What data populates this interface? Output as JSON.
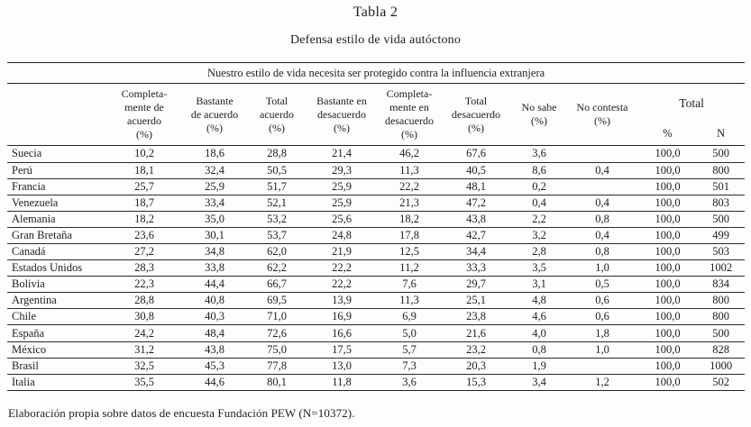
{
  "title": "Tabla 2",
  "subtitle": "Defensa estilo de vida autóctono",
  "table": {
    "question": "Nuestro estilo de vida necesita ser protegido contra la influencia extranjera",
    "col_headers": [
      "Completa-\nmente de\nacuerdo\n(%)",
      "Bastante\nde acuerdo\n(%)",
      "Total\nacuerdo\n(%)",
      "Bastante en\ndesacuerdo\n(%)",
      "Completa-\nmente en\ndesacuerdo\n(%)",
      "Total\ndesacuerdo\n(%)",
      "No sabe\n(%)",
      "No contesta\n(%)"
    ],
    "total_label": "Total",
    "total_sub": [
      "%",
      "N"
    ],
    "rows": [
      {
        "country": "Suecia",
        "values": [
          "10,2",
          "18,6",
          "28,8",
          "21,4",
          "46,2",
          "67,6",
          "3,6",
          "",
          "100,0",
          "500"
        ]
      },
      {
        "country": "Perú",
        "values": [
          "18,1",
          "32,4",
          "50,5",
          "29,3",
          "11,3",
          "40,5",
          "8,6",
          "0,4",
          "100,0",
          "800"
        ]
      },
      {
        "country": "Francia",
        "values": [
          "25,7",
          "25,9",
          "51,7",
          "25,9",
          "22,2",
          "48,1",
          "0,2",
          "",
          "100,0",
          "501"
        ]
      },
      {
        "country": "Venezuela",
        "values": [
          "18,7",
          "33,4",
          "52,1",
          "25,9",
          "21,3",
          "47,2",
          "0,4",
          "0,4",
          "100,0",
          "803"
        ]
      },
      {
        "country": "Alemania",
        "values": [
          "18,2",
          "35,0",
          "53,2",
          "25,6",
          "18,2",
          "43,8",
          "2,2",
          "0,8",
          "100,0",
          "500"
        ]
      },
      {
        "country": "Gran Bretaña",
        "values": [
          "23,6",
          "30,1",
          "53,7",
          "24,8",
          "17,8",
          "42,7",
          "3,2",
          "0,4",
          "100,0",
          "499"
        ]
      },
      {
        "country": "Canadá",
        "values": [
          "27,2",
          "34,8",
          "62,0",
          "21,9",
          "12,5",
          "34,4",
          "2,8",
          "0,8",
          "100,0",
          "503"
        ]
      },
      {
        "country": "Estados Unidos",
        "values": [
          "28,3",
          "33,8",
          "62,2",
          "22,2",
          "11,2",
          "33,3",
          "3,5",
          "1,0",
          "100,0",
          "1002"
        ]
      },
      {
        "country": "Bolivia",
        "values": [
          "22,3",
          "44,4",
          "66,7",
          "22,2",
          "7,6",
          "29,7",
          "3,1",
          "0,5",
          "100,0",
          "834"
        ]
      },
      {
        "country": "Argentina",
        "values": [
          "28,8",
          "40,8",
          "69,5",
          "13,9",
          "11,3",
          "25,1",
          "4,8",
          "0,6",
          "100,0",
          "800"
        ]
      },
      {
        "country": "Chile",
        "values": [
          "30,8",
          "40,3",
          "71,0",
          "16,9",
          "6,9",
          "23,8",
          "4,6",
          "0,6",
          "100,0",
          "800"
        ]
      },
      {
        "country": "España",
        "values": [
          "24,2",
          "48,4",
          "72,6",
          "16,6",
          "5,0",
          "21,6",
          "4,0",
          "1,8",
          "100,0",
          "500"
        ]
      },
      {
        "country": "México",
        "values": [
          "31,2",
          "43,8",
          "75,0",
          "17,5",
          "5,7",
          "23,2",
          "0,8",
          "1,0",
          "100,0",
          "828"
        ]
      },
      {
        "country": "Brasil",
        "values": [
          "32,5",
          "45,3",
          "77,8",
          "13,0",
          "7,3",
          "20,3",
          "1,9",
          "",
          "100,0",
          "1000"
        ]
      },
      {
        "country": "Italia",
        "values": [
          "35,5",
          "44,6",
          "80,1",
          "11,8",
          "3,6",
          "15,3",
          "3,4",
          "1,2",
          "100,0",
          "502"
        ]
      }
    ]
  },
  "footnote": "Elaboración propia sobre datos de encuesta Fundación PEW (N=10372)."
}
